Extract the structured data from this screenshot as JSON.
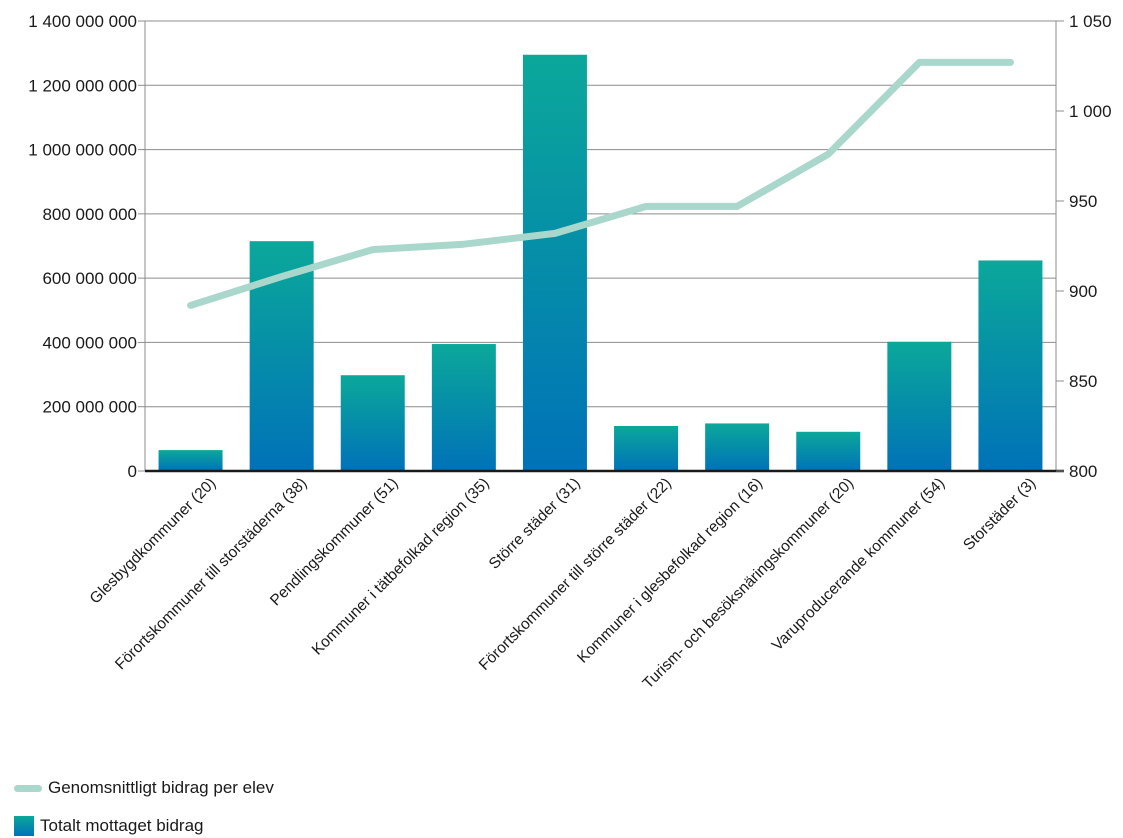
{
  "chart_data": {
    "type": "bar",
    "categories": [
      "Glesbygdkommuner (20)",
      "Förortskommuner till storstäderna (38)",
      "Pendlingskommuner (51)",
      "Kommuner i tätbefolkad region (35)",
      "Större städer (31)",
      "Förortskommuner till större städer (22)",
      "Kommuner i glesbefolkad region (16)",
      "Turism- och besöksnäringskommuner (20)",
      "Varuproducerande kommuner (54)",
      "Storstäder (3)"
    ],
    "series": [
      {
        "name": "Totalt mottaget bidrag",
        "type": "bar",
        "axis": "left",
        "values": [
          65000000,
          715000000,
          298000000,
          395000000,
          1295000000,
          140000000,
          148000000,
          122000000,
          402000000,
          655000000
        ]
      },
      {
        "name": "Genomsnittligt bidrag per elev",
        "type": "line",
        "axis": "right",
        "values": [
          892,
          908,
          923,
          926,
          932,
          947,
          947,
          976,
          1027,
          1027
        ]
      }
    ],
    "y_left": {
      "ylim": [
        0,
        1400000000
      ],
      "ticks": [
        0,
        200000000,
        400000000,
        600000000,
        800000000,
        1000000000,
        1200000000,
        1400000000
      ],
      "tick_labels": [
        "0",
        "200 000 000",
        "400 000 000",
        "600 000 000",
        "800 000 000",
        "1 000 000 000",
        "1 200 000 000",
        "1 400 000 000"
      ]
    },
    "y_right": {
      "ylim": [
        800,
        1050
      ],
      "ticks": [
        800,
        850,
        900,
        950,
        1000,
        1050
      ],
      "tick_labels": [
        "800",
        "850",
        "900",
        "950",
        "1 000",
        "1 050"
      ]
    },
    "grid": true,
    "legend_placement": "bottom-left",
    "colors": {
      "bar_top": "#0ba89a",
      "bar_bottom": "#0072b8",
      "line": "#a9d7cc",
      "grid": "#8c8c8c",
      "axis": "#1a1a1a"
    }
  },
  "legend": {
    "line_label": "Genomsnittligt bidrag per elev",
    "bar_label": "Totalt mottaget bidrag"
  }
}
